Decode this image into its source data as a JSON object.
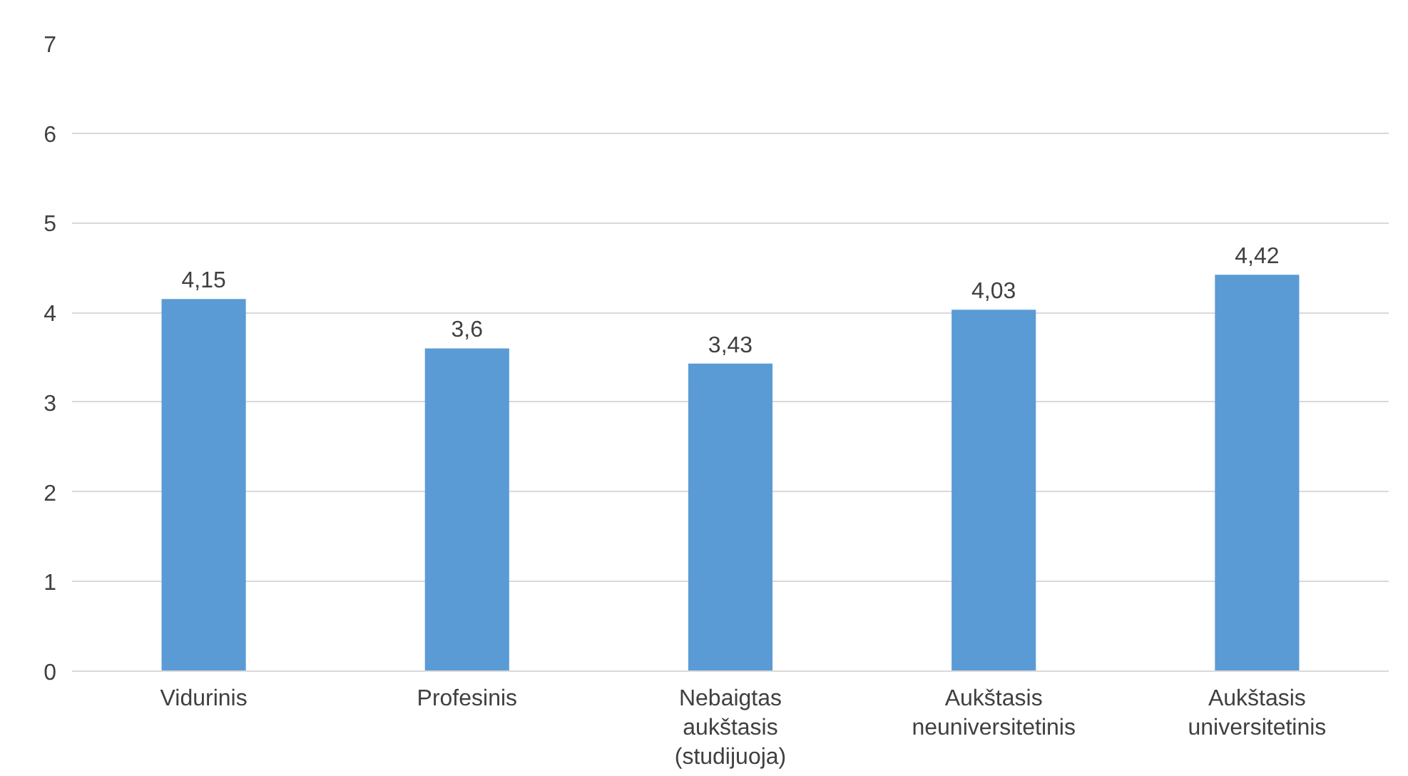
{
  "chart_data": {
    "type": "bar",
    "categories": [
      "Vidurinis",
      "Profesinis",
      "Nebaigtas aukštasis (studijuoja)",
      "Aukštasis neuniversitetinis",
      "Aukštasis universitetinis"
    ],
    "values": [
      4.15,
      3.6,
      3.43,
      4.03,
      4.42
    ],
    "value_labels": [
      "4,15",
      "3,6",
      "3,43",
      "4,03",
      "4,42"
    ],
    "color": "#5b9bd5",
    "ylim": [
      0,
      7
    ],
    "yticks": [
      0,
      1,
      2,
      3,
      4,
      5,
      6,
      7
    ],
    "grid": "y"
  }
}
